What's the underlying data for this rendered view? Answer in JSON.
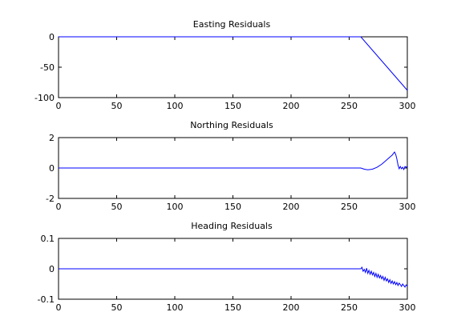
{
  "chart_data": [
    {
      "type": "line",
      "title": "Easting Residuals",
      "xlabel": "",
      "ylabel": "",
      "xlim": [
        0,
        300
      ],
      "ylim": [
        -100,
        0
      ],
      "xticks": [
        0,
        50,
        100,
        150,
        200,
        250,
        300
      ],
      "xtick_labels": [
        "0",
        "50",
        "100",
        "150",
        "200",
        "250",
        "300"
      ],
      "yticks": [
        0,
        -50,
        -100
      ],
      "ytick_labels": [
        "0",
        "-50",
        "-100"
      ],
      "grid": false,
      "line_color": "#0000ff",
      "series": [
        {
          "x": [
            0,
            260,
            300
          ],
          "y": [
            0,
            0,
            -88
          ]
        }
      ]
    },
    {
      "type": "line",
      "title": "Northing Residuals",
      "xlabel": "",
      "ylabel": "",
      "xlim": [
        0,
        300
      ],
      "ylim": [
        -2,
        2
      ],
      "xticks": [
        0,
        50,
        100,
        150,
        200,
        250,
        300
      ],
      "xtick_labels": [
        "0",
        "50",
        "100",
        "150",
        "200",
        "250",
        "300"
      ],
      "yticks": [
        2,
        0,
        -2
      ],
      "ytick_labels": [
        "2",
        "0",
        "-2"
      ],
      "grid": false,
      "line_color": "#0000ff",
      "series": [
        {
          "x": [
            0,
            260,
            263,
            266,
            270,
            274,
            278,
            281,
            284,
            287,
            289,
            290,
            291,
            292,
            293,
            294,
            295,
            296,
            297,
            298,
            299,
            300
          ],
          "y": [
            0,
            0,
            -0.08,
            -0.12,
            -0.08,
            0.05,
            0.25,
            0.45,
            0.65,
            0.85,
            1.05,
            0.9,
            0.6,
            0.2,
            -0.05,
            0.1,
            -0.05,
            0.05,
            -0.1,
            0.1,
            0.05,
            0.1
          ]
        }
      ]
    },
    {
      "type": "line",
      "title": "Heading Residuals",
      "xlabel": "",
      "ylabel": "",
      "xlim": [
        0,
        300
      ],
      "ylim": [
        -0.1,
        0.1
      ],
      "xticks": [
        0,
        50,
        100,
        150,
        200,
        250,
        300
      ],
      "xtick_labels": [
        "0",
        "50",
        "100",
        "150",
        "200",
        "250",
        "300"
      ],
      "yticks": [
        0.1,
        0,
        -0.1
      ],
      "ytick_labels": [
        "0.1",
        "0",
        "-0.1"
      ],
      "grid": false,
      "line_color": "#0000ff",
      "series": [
        {
          "x": [
            0,
            260,
            261,
            262,
            263,
            264,
            265,
            266,
            267,
            268,
            269,
            270,
            271,
            272,
            273,
            274,
            275,
            276,
            277,
            278,
            279,
            280,
            281,
            282,
            283,
            284,
            285,
            286,
            287,
            288,
            289,
            290,
            291,
            292,
            293,
            294,
            295,
            296,
            297,
            298,
            299,
            300
          ],
          "y": [
            0,
            0,
            0.005,
            -0.008,
            -0.002,
            -0.012,
            0.002,
            -0.015,
            -0.005,
            -0.018,
            -0.008,
            -0.02,
            -0.012,
            -0.025,
            -0.015,
            -0.028,
            -0.018,
            -0.03,
            -0.022,
            -0.033,
            -0.025,
            -0.038,
            -0.028,
            -0.04,
            -0.033,
            -0.045,
            -0.036,
            -0.048,
            -0.04,
            -0.05,
            -0.042,
            -0.052,
            -0.045,
            -0.055,
            -0.047,
            -0.052,
            -0.058,
            -0.05,
            -0.055,
            -0.06,
            -0.053,
            -0.057
          ]
        }
      ]
    }
  ]
}
